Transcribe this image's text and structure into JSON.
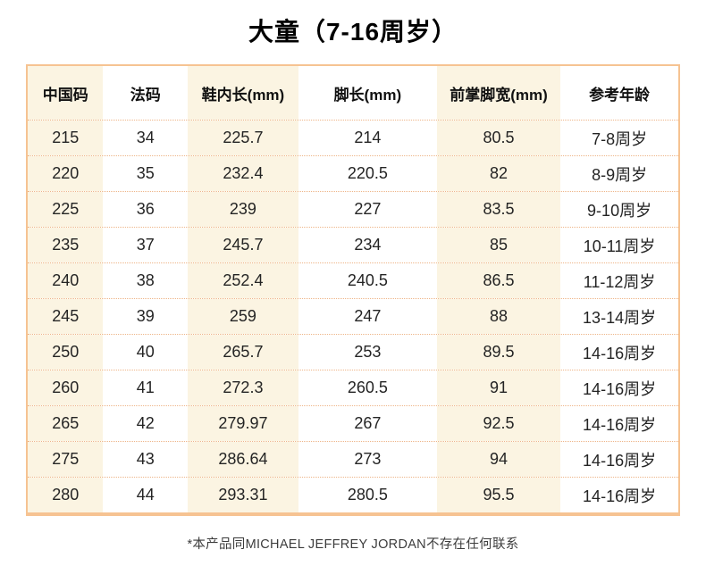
{
  "page": {
    "title": "大童（7-16周岁）",
    "footnote": "*本产品同MICHAEL JEFFREY JORDAN不存在任何联系"
  },
  "colors": {
    "table_border": "#f6c392",
    "striped_column_bg": "#fbf4e2",
    "row_divider_dotted": "#eeb588",
    "text": "#242424"
  },
  "table": {
    "headers": [
      "中国码",
      "法码",
      "鞋内长(mm)",
      "脚长(mm)",
      "前掌脚宽(mm)",
      "参考年龄"
    ],
    "rows": [
      [
        "215",
        "34",
        "225.7",
        "214",
        "80.5",
        "7-8周岁"
      ],
      [
        "220",
        "35",
        "232.4",
        "220.5",
        "82",
        "8-9周岁"
      ],
      [
        "225",
        "36",
        "239",
        "227",
        "83.5",
        "9-10周岁"
      ],
      [
        "235",
        "37",
        "245.7",
        "234",
        "85",
        "10-11周岁"
      ],
      [
        "240",
        "38",
        "252.4",
        "240.5",
        "86.5",
        "11-12周岁"
      ],
      [
        "245",
        "39",
        "259",
        "247",
        "88",
        "13-14周岁"
      ],
      [
        "250",
        "40",
        "265.7",
        "253",
        "89.5",
        "14-16周岁"
      ],
      [
        "260",
        "41",
        "272.3",
        "260.5",
        "91",
        "14-16周岁"
      ],
      [
        "265",
        "42",
        "279.97",
        "267",
        "92.5",
        "14-16周岁"
      ],
      [
        "275",
        "43",
        "286.64",
        "273",
        "94",
        "14-16周岁"
      ],
      [
        "280",
        "44",
        "293.31",
        "280.5",
        "95.5",
        "14-16周岁"
      ]
    ]
  }
}
